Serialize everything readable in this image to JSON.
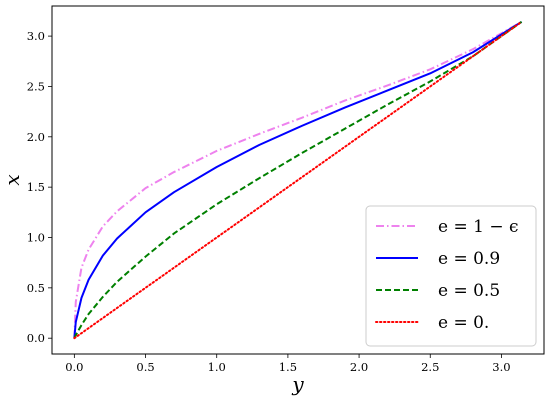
{
  "chart_data": {
    "type": "line",
    "title": "",
    "xlabel": "y",
    "ylabel": "x",
    "xlim": [
      -0.157,
      3.299
    ],
    "ylim": [
      -0.157,
      3.299
    ],
    "xticks": [
      0.0,
      0.5,
      1.0,
      1.5,
      2.0,
      2.5,
      3.0
    ],
    "yticks": [
      0.0,
      0.5,
      1.0,
      1.5,
      2.0,
      2.5,
      3.0
    ],
    "xtick_labels": [
      "0.0",
      "0.5",
      "1.0",
      "1.5",
      "2.0",
      "2.5",
      "3.0"
    ],
    "ytick_labels": [
      "0.0",
      "0.5",
      "1.0",
      "1.5",
      "2.0",
      "2.5",
      "3.0"
    ],
    "grid": false,
    "legend_position": "bottom-right",
    "x": [
      0.0,
      0.01,
      0.05,
      0.1,
      0.2,
      0.3,
      0.5,
      0.7,
      1.0,
      1.3,
      1.6,
      1.9,
      2.2,
      2.5,
      2.8,
      3.1416
    ],
    "series": [
      {
        "name": "e = 1 − ϵ",
        "color": "#ee82ee",
        "dash": "dashdot",
        "values": [
          0.0,
          0.36,
          0.7,
          0.88,
          1.11,
          1.26,
          1.49,
          1.65,
          1.86,
          2.03,
          2.19,
          2.36,
          2.51,
          2.67,
          2.87,
          3.1416
        ]
      },
      {
        "name": "e = 0.9",
        "color": "#0000ff",
        "dash": "solid",
        "values": [
          0.0,
          0.16,
          0.4,
          0.58,
          0.82,
          0.99,
          1.25,
          1.45,
          1.7,
          1.92,
          2.11,
          2.29,
          2.46,
          2.63,
          2.84,
          3.1416
        ]
      },
      {
        "name": "e = 0.5",
        "color": "#008000",
        "dash": "dashed",
        "values": [
          0.0,
          0.03,
          0.13,
          0.24,
          0.41,
          0.56,
          0.81,
          1.04,
          1.33,
          1.59,
          1.84,
          2.08,
          2.32,
          2.55,
          2.8,
          3.1416
        ]
      },
      {
        "name": "e = 0.",
        "color": "#ff0000",
        "dash": "dotted",
        "values": [
          0.0,
          0.01,
          0.05,
          0.1,
          0.2,
          0.3,
          0.5,
          0.7,
          1.0,
          1.3,
          1.6,
          1.9,
          2.2,
          2.5,
          2.8,
          3.1416
        ]
      }
    ]
  }
}
